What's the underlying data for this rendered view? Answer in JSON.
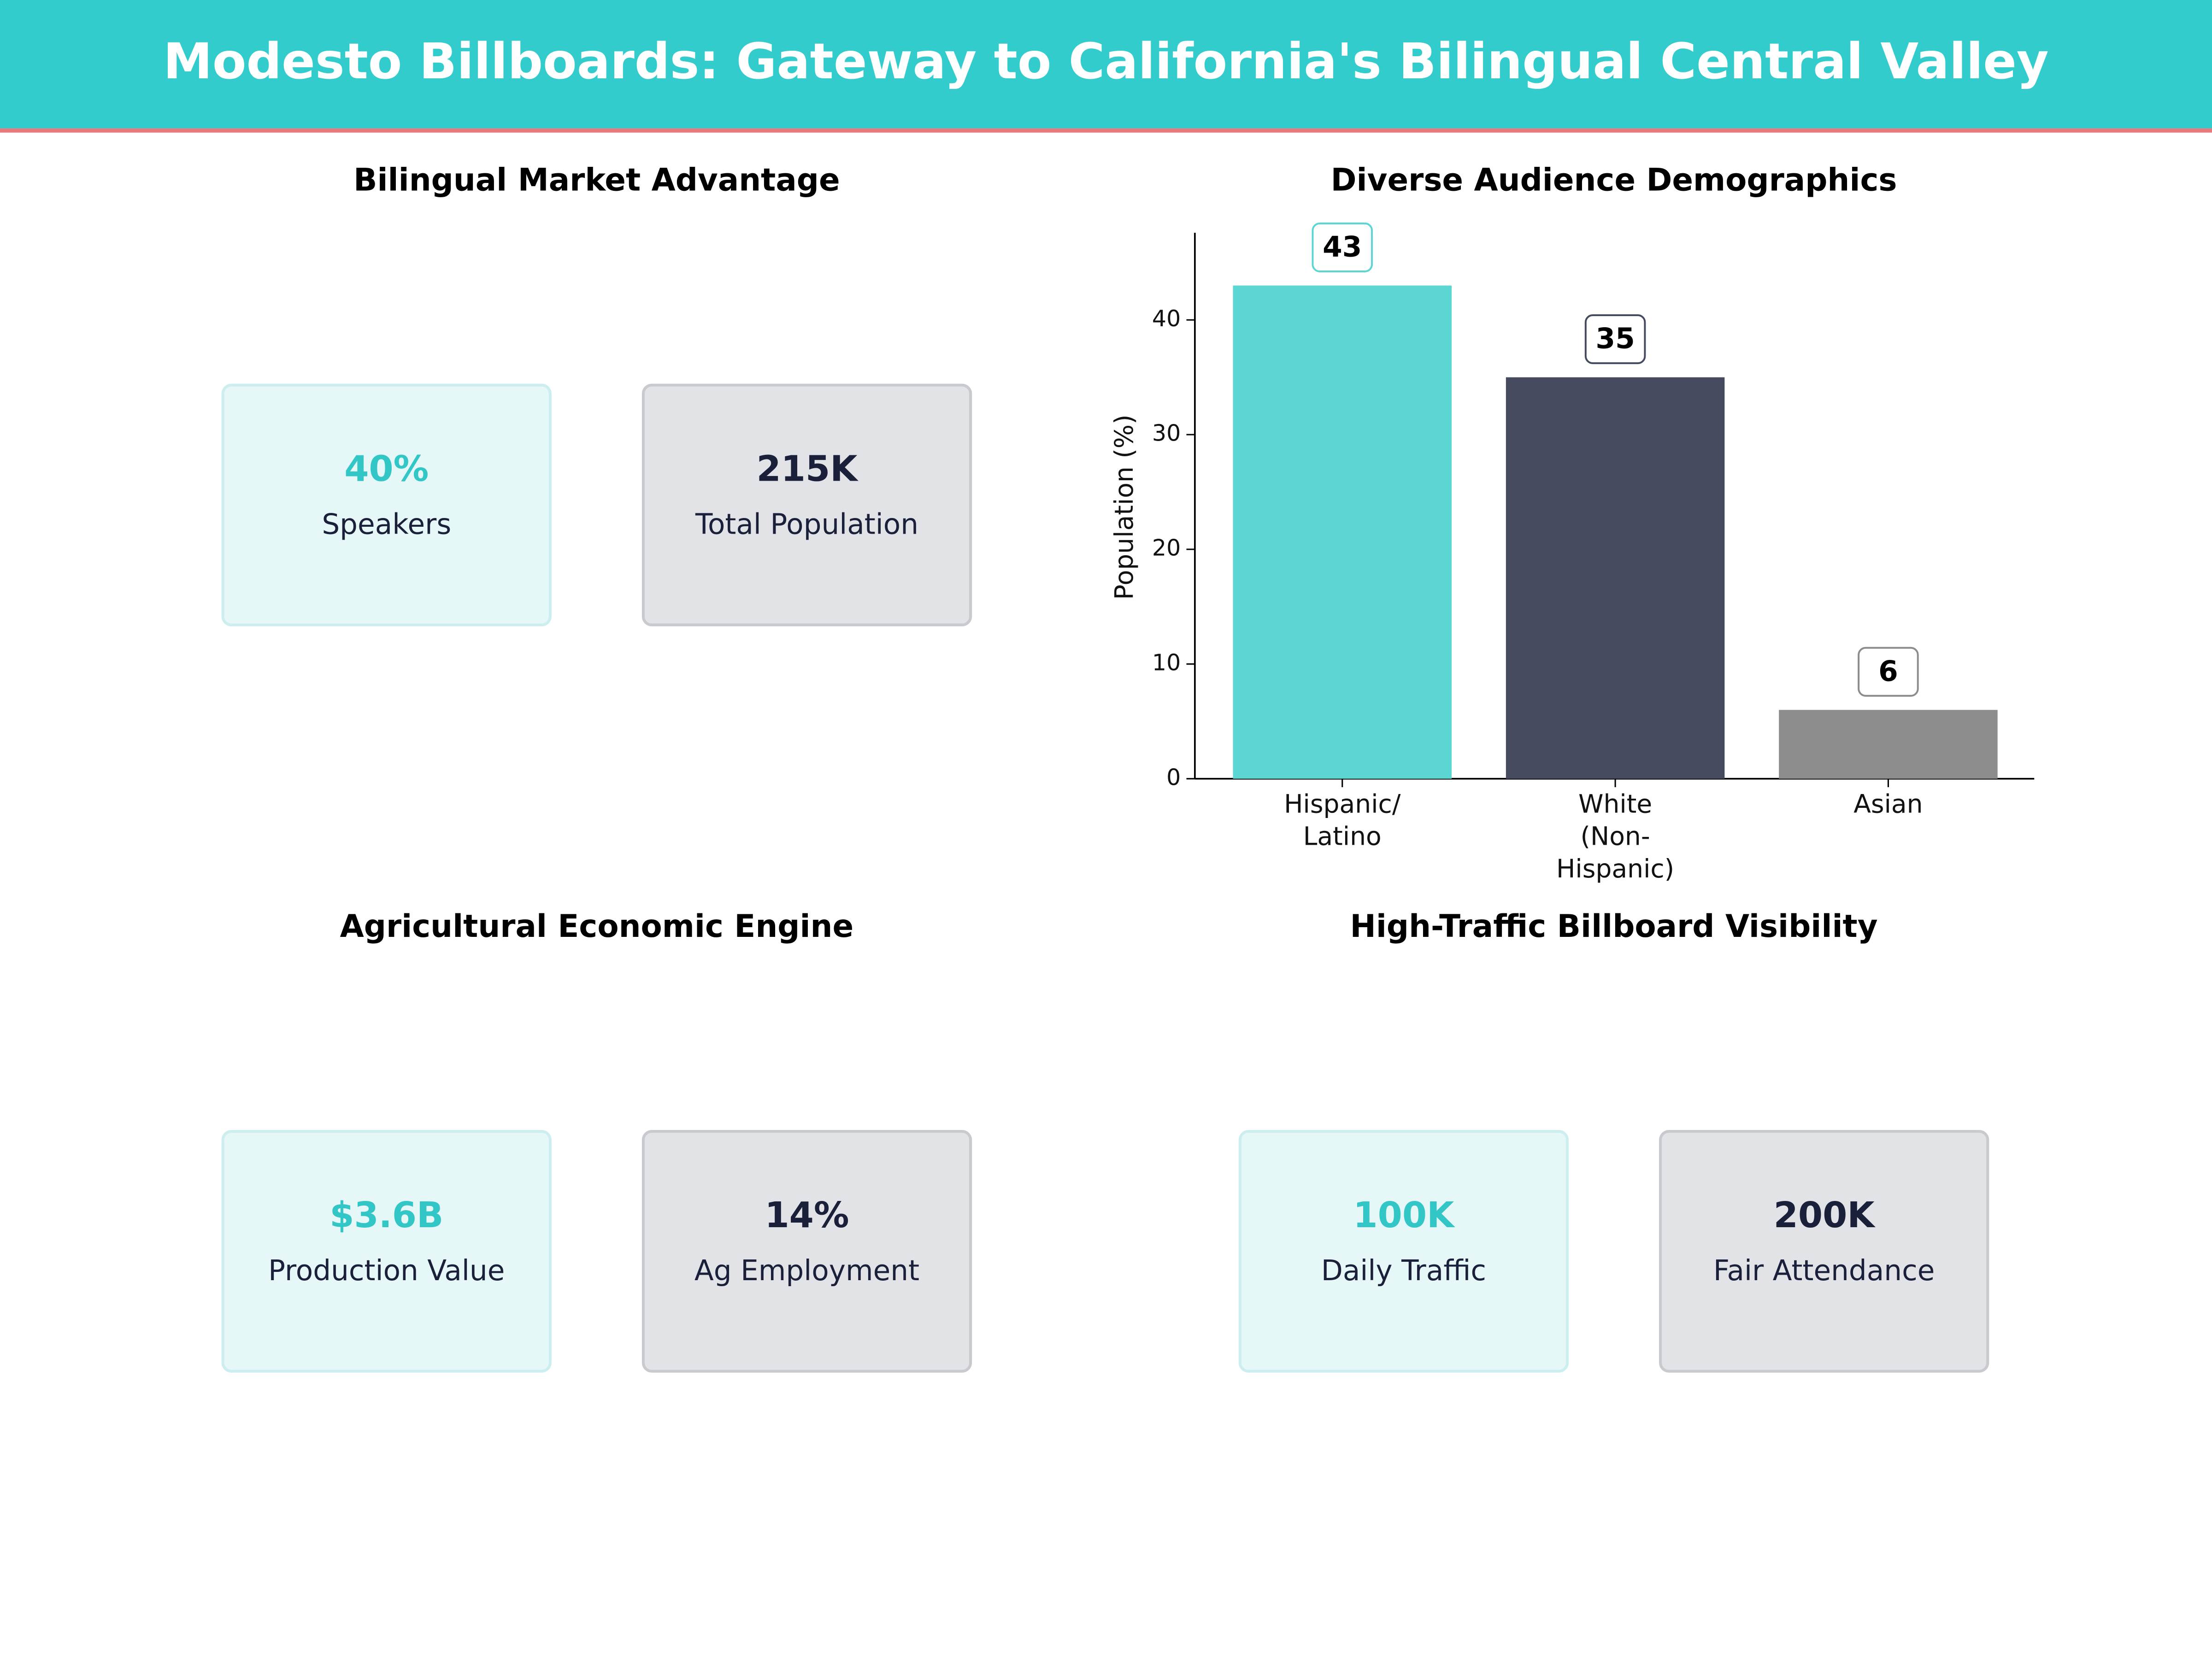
{
  "title": "Modesto Billboards: Gateway to California's Bilingual Central Valley",
  "panels": [
    {
      "title": "Bilingual Market Advantage",
      "kpis": [
        {
          "value": "40%",
          "label": "Speakers"
        },
        {
          "value": "215K",
          "label": "Total Population"
        }
      ]
    },
    {
      "title": "Agricultural Economic Engine",
      "kpis": [
        {
          "value": "$3.6B",
          "label": "Production Value"
        },
        {
          "value": "14%",
          "label": "Ag Employment"
        }
      ]
    },
    {
      "title": "High-Traffic Billboard Visibility",
      "kpis": [
        {
          "value": "100K",
          "label": "Daily Traffic"
        },
        {
          "value": "200K",
          "label": "Fair Attendance"
        }
      ]
    }
  ],
  "chart_data": {
    "type": "bar",
    "title": "Diverse Audience Demographics",
    "ylabel": "Population (%)",
    "categories": [
      "Hispanic/\nLatino",
      "White\n(Non-\nHispanic)",
      "Asian"
    ],
    "values": [
      43,
      35,
      6
    ],
    "colors": [
      "#5cd6d3",
      "#464a5f",
      "#8c8c8c"
    ],
    "ylim": [
      0,
      47.6
    ],
    "yticks": [
      0,
      10,
      20,
      30,
      40
    ]
  }
}
